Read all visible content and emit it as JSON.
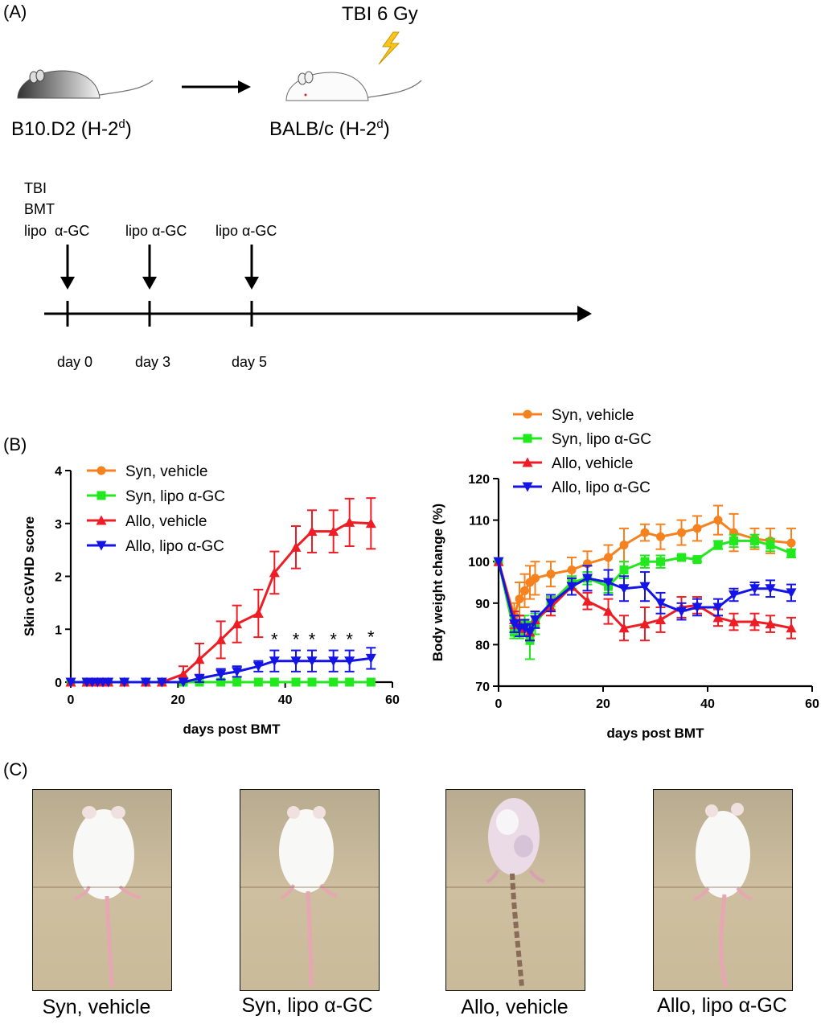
{
  "panelA": {
    "label": "(A)",
    "tbi_label": "TBI 6 Gy",
    "donor": {
      "name": "B10.D2 (H-2",
      "sup": "d",
      "end": ")"
    },
    "recipient": {
      "name": "BALB/c (H-2",
      "sup": "d",
      "end": ")"
    },
    "timeline": {
      "events": [
        {
          "lines": [
            "TBI",
            "BMT",
            "lipo  α-GC"
          ],
          "day": "day 0"
        },
        {
          "lines": [
            "lipo α-GC"
          ],
          "day": "day 3"
        },
        {
          "lines": [
            "lipo α-GC"
          ],
          "day": "day 5"
        }
      ]
    }
  },
  "panelB": {
    "label": "(B)"
  },
  "panelC": {
    "label": "(C)",
    "captions": [
      "Syn, vehicle",
      "Syn, lipo α-GC",
      "Allo, vehicle",
      "Allo, lipo α-GC"
    ]
  },
  "colors": {
    "syn_vehicle": "#f5821f",
    "syn_lipo": "#22e81e",
    "allo_vehicle": "#ee1c24",
    "allo_lipo": "#1414e6"
  },
  "chart_data": [
    {
      "type": "line",
      "title": "",
      "xlabel": "days post BMT",
      "ylabel": "Skin cGVHD score",
      "xlim": [
        0,
        60
      ],
      "ylim": [
        0,
        4
      ],
      "xticks": [
        0,
        20,
        40,
        60
      ],
      "yticks": [
        0,
        1,
        2,
        3,
        4
      ],
      "legend": "top-left",
      "series": [
        {
          "name": "Syn, vehicle",
          "color": "#f5821f",
          "marker": "circle",
          "x": [
            0,
            3,
            4,
            5,
            6,
            7,
            10,
            14,
            17,
            21,
            24,
            28,
            31,
            35,
            38,
            42,
            45,
            49,
            52,
            56
          ],
          "y": [
            0,
            0,
            0,
            0,
            0,
            0,
            0,
            0,
            0,
            0,
            0,
            0,
            0,
            0,
            0,
            0,
            0,
            0,
            0,
            0
          ]
        },
        {
          "name": "Syn, lipo α-GC",
          "color": "#22e81e",
          "marker": "square",
          "x": [
            0,
            3,
            4,
            5,
            6,
            7,
            10,
            14,
            17,
            21,
            24,
            28,
            31,
            35,
            38,
            42,
            45,
            49,
            52,
            56
          ],
          "y": [
            0,
            0,
            0,
            0,
            0,
            0,
            0,
            0,
            0,
            0,
            0,
            0,
            0,
            0,
            0,
            0,
            0,
            0,
            0,
            0
          ]
        },
        {
          "name": "Allo, vehicle",
          "color": "#ee1c24",
          "marker": "triangle-up",
          "x": [
            0,
            3,
            4,
            5,
            6,
            7,
            10,
            14,
            17,
            21,
            24,
            28,
            31,
            35,
            38,
            42,
            45,
            49,
            52,
            56
          ],
          "y": [
            0,
            0,
            0,
            0,
            0,
            0,
            0,
            0,
            0,
            0.15,
            0.43,
            0.8,
            1.1,
            1.3,
            2.07,
            2.55,
            2.85,
            2.85,
            3.02,
            3.0
          ],
          "err": [
            0,
            0,
            0,
            0,
            0,
            0,
            0,
            0,
            0,
            0.15,
            0.3,
            0.35,
            0.35,
            0.45,
            0.4,
            0.4,
            0.4,
            0.4,
            0.45,
            0.48
          ]
        },
        {
          "name": "Allo, lipo α-GC",
          "color": "#1414e6",
          "marker": "triangle-down",
          "x": [
            0,
            3,
            4,
            5,
            6,
            7,
            10,
            14,
            17,
            21,
            24,
            28,
            31,
            35,
            38,
            42,
            45,
            49,
            52,
            56
          ],
          "y": [
            0,
            0,
            0,
            0,
            0,
            0,
            0,
            0,
            0,
            0,
            0.07,
            0.15,
            0.2,
            0.3,
            0.4,
            0.4,
            0.4,
            0.4,
            0.4,
            0.45
          ],
          "err": [
            0,
            0,
            0,
            0,
            0,
            0,
            0,
            0,
            0,
            0,
            0.07,
            0.1,
            0.1,
            0.1,
            0.2,
            0.2,
            0.2,
            0.2,
            0.2,
            0.2
          ]
        }
      ],
      "annotations": [
        {
          "text": "*",
          "x": 38
        },
        {
          "text": "*",
          "x": 42
        },
        {
          "text": "*",
          "x": 45
        },
        {
          "text": "*",
          "x": 49
        },
        {
          "text": "*",
          "x": 52
        },
        {
          "text": "*",
          "x": 56
        }
      ]
    },
    {
      "type": "line",
      "title": "",
      "xlabel": "days post BMT",
      "ylabel": "Body weight change (%)",
      "xlim": [
        0,
        60
      ],
      "ylim": [
        70,
        120
      ],
      "xticks": [
        0,
        20,
        40,
        60
      ],
      "yticks": [
        70,
        80,
        90,
        100,
        110,
        120
      ],
      "legend": "top",
      "series": [
        {
          "name": "Syn, vehicle",
          "color": "#f5821f",
          "marker": "circle",
          "x": [
            0,
            3,
            4,
            5,
            6,
            7,
            10,
            14,
            17,
            21,
            24,
            28,
            31,
            35,
            38,
            42,
            45,
            49,
            52,
            56
          ],
          "y": [
            100,
            87,
            91,
            93,
            95,
            96,
            97,
            98,
            99.5,
            101,
            104,
            107,
            106,
            107,
            108,
            110,
            107,
            105.5,
            105,
            104.5
          ],
          "err": [
            0,
            3,
            4,
            4,
            4,
            4,
            3,
            3,
            3,
            3,
            4,
            2,
            3,
            3,
            3,
            3.5,
            4.5,
            2.5,
            3,
            3.5
          ]
        },
        {
          "name": "Syn, lipo α-GC",
          "color": "#22e81e",
          "marker": "square",
          "x": [
            0,
            3,
            4,
            5,
            6,
            7,
            10,
            14,
            17,
            21,
            24,
            28,
            31,
            35,
            38,
            42,
            45,
            49,
            52,
            56
          ],
          "y": [
            100,
            83,
            83,
            85,
            81,
            85,
            90,
            95,
            96,
            94,
            98,
            100,
            100,
            101,
            100.5,
            104,
            105,
            105,
            104,
            102
          ],
          "err": [
            0,
            1.5,
            1.5,
            2,
            4.5,
            2.5,
            1.5,
            1.5,
            1.5,
            1.5,
            2,
            1.5,
            1.5,
            0.5,
            0.5,
            1,
            1.5,
            1.5,
            1.5,
            1
          ]
        },
        {
          "name": "Allo, vehicle",
          "color": "#ee1c24",
          "marker": "triangle-up",
          "x": [
            0,
            3,
            4,
            5,
            6,
            7,
            10,
            14,
            17,
            21,
            24,
            28,
            31,
            35,
            38,
            42,
            45,
            49,
            52,
            56
          ],
          "y": [
            100,
            86,
            85,
            84,
            83,
            86,
            89,
            94,
            90.5,
            88,
            84,
            85,
            86,
            89,
            89.5,
            86.5,
            85.5,
            85.5,
            85,
            84
          ],
          "err": [
            0,
            2,
            2,
            2,
            2,
            2,
            2,
            2,
            2,
            3,
            3,
            4,
            3,
            2.5,
            2,
            2,
            2,
            2,
            2,
            2.5
          ]
        },
        {
          "name": "Allo, lipo α-GC",
          "color": "#1414e6",
          "marker": "triangle-down",
          "x": [
            0,
            3,
            4,
            5,
            6,
            7,
            10,
            14,
            17,
            21,
            24,
            28,
            31,
            35,
            38,
            42,
            45,
            49,
            52,
            56
          ],
          "y": [
            100,
            85,
            84,
            84,
            83,
            86,
            90,
            94,
            96,
            95,
            93.5,
            94,
            90,
            88,
            89,
            89,
            92,
            93.5,
            93.5,
            92.5
          ],
          "err": [
            0,
            2,
            2,
            2,
            2,
            2,
            2,
            2,
            3,
            3,
            3,
            3.5,
            2.5,
            2,
            2,
            2,
            1.5,
            1.5,
            2,
            2
          ]
        }
      ]
    }
  ]
}
